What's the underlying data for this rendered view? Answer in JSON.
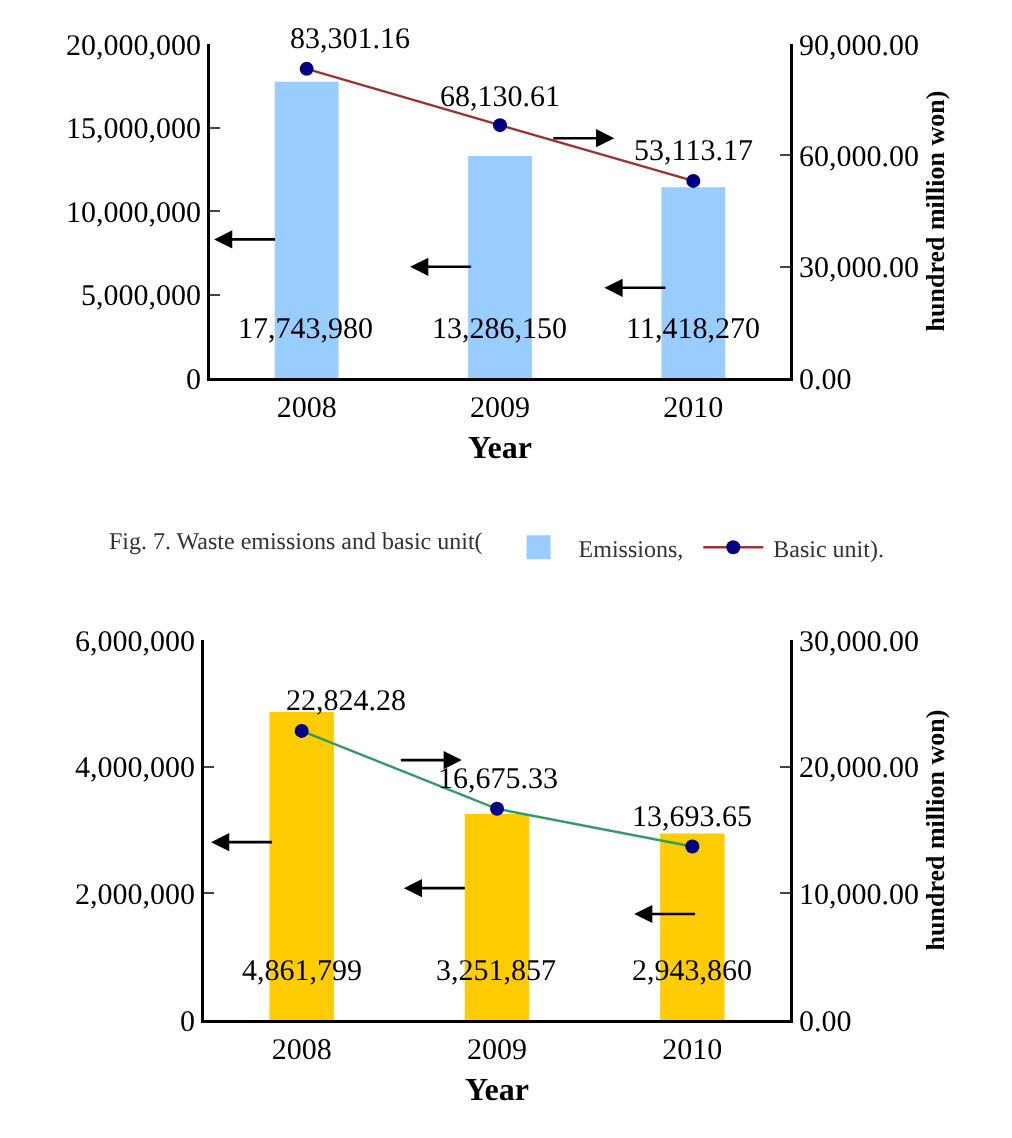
{
  "chart_data": [
    {
      "type": "bar",
      "categories": [
        "2008",
        "2009",
        "2010"
      ],
      "xlabel": "Year",
      "y2label": "hundred million won)",
      "legend_title": "Fig. 7. Waste emissions and basic unit(",
      "legend": "bottom",
      "ylim": [
        0,
        20000000
      ],
      "yticks": [
        0,
        {
          "value": 5000000,
          "label": "5,000,000"
        },
        {
          "value": 10000000,
          "label": "10,000,000"
        },
        {
          "value": 15000000,
          "label": "15,000,000"
        },
        {
          "value": 20000000,
          "label": "20,000,000"
        }
      ],
      "y2lim": [
        0,
        90000
      ],
      "y2ticks": [
        {
          "value": 0,
          "label": "0.00"
        },
        {
          "value": 30000,
          "label": "30,000.00"
        },
        {
          "value": 60000,
          "label": "60,000.00"
        },
        {
          "value": 90000,
          "label": "90,000.00"
        }
      ],
      "series": [
        {
          "name": "Emissions,",
          "color": "#99ccff",
          "values": [
            17743980,
            13286150,
            11418270
          ],
          "value_labels": [
            "17,743,980",
            "13,286,150",
            "11,418,270"
          ]
        },
        {
          "name": "Basic unit).",
          "type": "line",
          "axis": "y2",
          "color": "#993333",
          "colors": [
            "#000080",
            "#000080",
            "#000080"
          ],
          "marker": "circle",
          "values": [
            83301.16,
            68130.61,
            53113.17
          ],
          "value_labels": [
            "83,301.16",
            "68,130.61",
            "53,113.17"
          ]
        }
      ]
    },
    {
      "type": "bar",
      "categories": [
        "2008",
        "2009",
        "2010"
      ],
      "xlabel": "Year",
      "y2label": "hundred million won)",
      "ylim": [
        0,
        6000000
      ],
      "yticks": [
        0,
        {
          "value": 2000000,
          "label": "2,000,000"
        },
        {
          "value": 4000000,
          "label": "4,000,000"
        },
        {
          "value": 6000000,
          "label": "6,000,000"
        }
      ],
      "y2lim": [
        0,
        30000
      ],
      "y2ticks": [
        {
          "value": 0,
          "label": "0.00"
        },
        {
          "value": 10000,
          "label": "10,000.00"
        },
        {
          "value": 20000,
          "label": "20,000.00"
        },
        {
          "value": 30000,
          "label": "30,000.00"
        }
      ],
      "series": [
        {
          "color": "#ffcc00",
          "values": [
            4861799,
            3251857,
            2943860
          ],
          "value_labels": [
            "4,861,799",
            "3,251,857",
            "2,943,860"
          ]
        },
        {
          "type": "line",
          "axis": "y2",
          "color": "#339966",
          "colors": [
            "#000080",
            "#000080",
            "#000080"
          ],
          "marker": "circle",
          "values": [
            22824.28,
            16675.33,
            13693.65
          ],
          "value_labels": [
            "22,824.28",
            "16,675.33",
            "13,693.65"
          ]
        }
      ]
    }
  ]
}
